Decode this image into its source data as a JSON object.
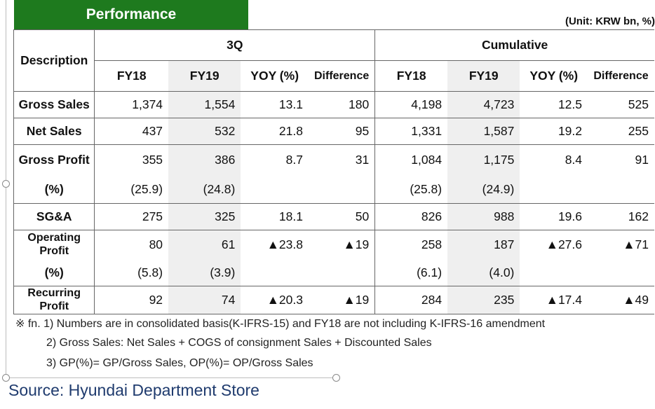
{
  "title": "Performance",
  "unit": "(Unit: KRW bn, %)",
  "header": {
    "description": "Description",
    "group_3q": "3Q",
    "group_cum": "Cumulative",
    "fy18": "FY18",
    "fy19": "FY19",
    "yoy": "YOY (%)",
    "difference": "Difference"
  },
  "rows": {
    "gross_sales": {
      "label": "Gross Sales",
      "q_fy18": "1,374",
      "q_fy19": "1,554",
      "q_yoy": "13.1",
      "q_diff": "180",
      "c_fy18": "4,198",
      "c_fy19": "4,723",
      "c_yoy": "12.5",
      "c_diff": "525"
    },
    "net_sales": {
      "label": "Net Sales",
      "q_fy18": "437",
      "q_fy19": "532",
      "q_yoy": "21.8",
      "q_diff": "95",
      "c_fy18": "1,331",
      "c_fy19": "1,587",
      "c_yoy": "19.2",
      "c_diff": "255"
    },
    "gross_profit": {
      "label": "Gross Profit",
      "q_fy18": "355",
      "q_fy19": "386",
      "q_yoy": "8.7",
      "q_diff": "31",
      "c_fy18": "1,084",
      "c_fy19": "1,175",
      "c_yoy": "8.4",
      "c_diff": "91"
    },
    "gp_pct": {
      "label": "(%)",
      "q_fy18": "(25.9)",
      "q_fy19": "(24.8)",
      "c_fy18": "(25.8)",
      "c_fy19": "(24.9)"
    },
    "sga": {
      "label": "SG&A",
      "q_fy18": "275",
      "q_fy19": "325",
      "q_yoy": "18.1",
      "q_diff": "50",
      "c_fy18": "826",
      "c_fy19": "988",
      "c_yoy": "19.6",
      "c_diff": "162"
    },
    "op_profit": {
      "label": "Operating Profit",
      "q_fy18": "80",
      "q_fy19": "61",
      "q_yoy": "▲23.8",
      "q_diff": "▲19",
      "c_fy18": "258",
      "c_fy19": "187",
      "c_yoy": "▲27.6",
      "c_diff": "▲71"
    },
    "op_pct": {
      "label": "(%)",
      "q_fy18": "(5.8)",
      "q_fy19": "(3.9)",
      "c_fy18": "(6.1)",
      "c_fy19": "(4.0)"
    },
    "recurring": {
      "label": "Recurring Profit",
      "q_fy18": "92",
      "q_fy19": "74",
      "q_yoy": "▲20.3",
      "q_diff": "▲19",
      "c_fy18": "284",
      "c_fy19": "235",
      "c_yoy": "▲17.4",
      "c_diff": "▲49"
    }
  },
  "notes": [
    "※ fn. 1) Numbers are in consolidated basis(K-IFRS-15) and FY18 are not including K-IFRS-16 amendment",
    "2) Gross Sales: Net Sales + COGS of consignment Sales + Discounted Sales",
    "3) GP(%)= GP/Gross Sales, OP(%)= OP/Gross Sales"
  ],
  "source": "Source: Hyundai Department Store"
}
